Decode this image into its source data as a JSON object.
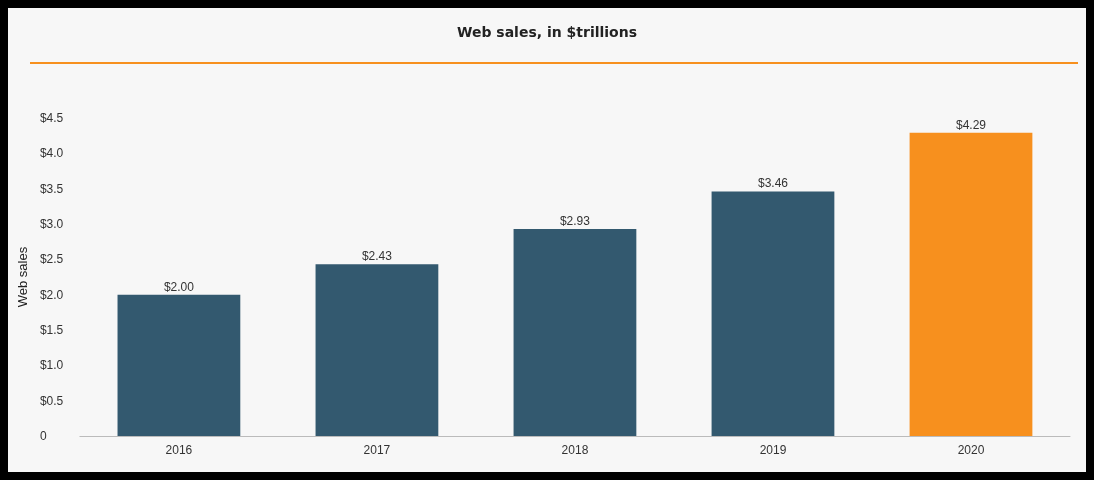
{
  "chart_data": {
    "type": "bar",
    "title": "Web sales, in $trillions",
    "ylabel": "Web sales",
    "categories": [
      "2016",
      "2017",
      "2018",
      "2019",
      "2020"
    ],
    "values": [
      2.0,
      2.43,
      2.93,
      3.46,
      4.29
    ],
    "colors": [
      "#33596f",
      "#33596f",
      "#33596f",
      "#33596f",
      "#f7901e"
    ],
    "value_labels": [
      "$2.00",
      "$2.43",
      "$2.93",
      "$3.46",
      "$4.29"
    ],
    "ylim": [
      0,
      4.5
    ],
    "yticks": [
      {
        "value": 0,
        "label": "0"
      },
      {
        "value": 0.5,
        "label": "$0.5"
      },
      {
        "value": 1,
        "label": "$1.0"
      },
      {
        "value": 1.5,
        "label": "$1.5"
      },
      {
        "value": 2,
        "label": "$2.0"
      },
      {
        "value": 2.5,
        "label": "$2.5"
      },
      {
        "value": 3,
        "label": "$3.0"
      },
      {
        "value": 3.5,
        "label": "$3.5"
      },
      {
        "value": 4,
        "label": "$4.0"
      },
      {
        "value": 4.5,
        "label": "$4.5"
      }
    ],
    "grid": false
  }
}
